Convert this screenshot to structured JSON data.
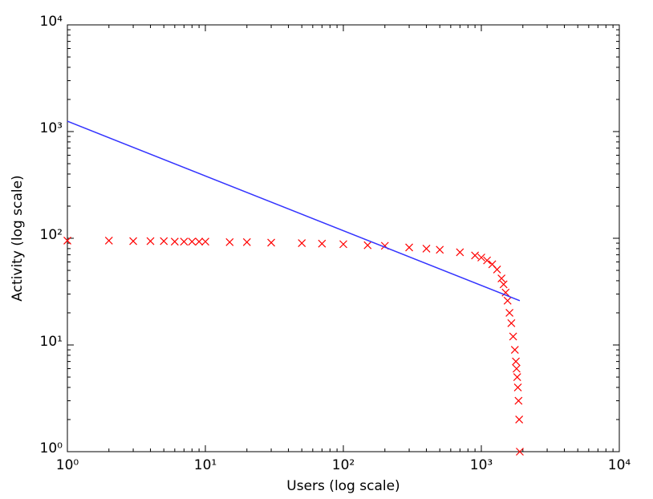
{
  "chart_data": {
    "type": "scatter",
    "xlabel": "Users (log scale)",
    "ylabel": "Activity (log scale)",
    "xscale": "log",
    "yscale": "log",
    "xlim": [
      1,
      10000
    ],
    "ylim": [
      1,
      10000
    ],
    "xticks": [
      {
        "value": 1,
        "label": "10⁰"
      },
      {
        "value": 10,
        "label": "10¹"
      },
      {
        "value": 100,
        "label": "10²"
      },
      {
        "value": 1000,
        "label": "10³"
      },
      {
        "value": 10000,
        "label": "10⁴"
      }
    ],
    "yticks": [
      {
        "value": 1,
        "label": "10⁰"
      },
      {
        "value": 10,
        "label": "10¹"
      },
      {
        "value": 100,
        "label": "10²"
      },
      {
        "value": 1000,
        "label": "10³"
      },
      {
        "value": 10000,
        "label": "10⁴"
      }
    ],
    "grid": false,
    "series": [
      {
        "color": "#ff0000",
        "marker": "x",
        "x": [
          1,
          2,
          3,
          4,
          5,
          6,
          7,
          8,
          9,
          10,
          15,
          20,
          30,
          50,
          70,
          100,
          150,
          200,
          300,
          400,
          500,
          700,
          900,
          1000,
          1100,
          1200,
          1300,
          1400,
          1450,
          1500,
          1550,
          1600,
          1650,
          1700,
          1750,
          1780,
          1800,
          1820,
          1840,
          1860,
          1880,
          1900
        ],
        "values": [
          95,
          95,
          94,
          94,
          94,
          93,
          93,
          93,
          93,
          93,
          92,
          92,
          91,
          90,
          89,
          88,
          86,
          85,
          82,
          80,
          78,
          74,
          69,
          66,
          62,
          57,
          51,
          42,
          37,
          31,
          26,
          20,
          16,
          12,
          9,
          7,
          6,
          5,
          4,
          3,
          2,
          1
        ]
      },
      {
        "color": "#3333ff",
        "marker": "line",
        "x": [
          1,
          1900
        ],
        "values": [
          1250,
          26
        ]
      }
    ]
  }
}
